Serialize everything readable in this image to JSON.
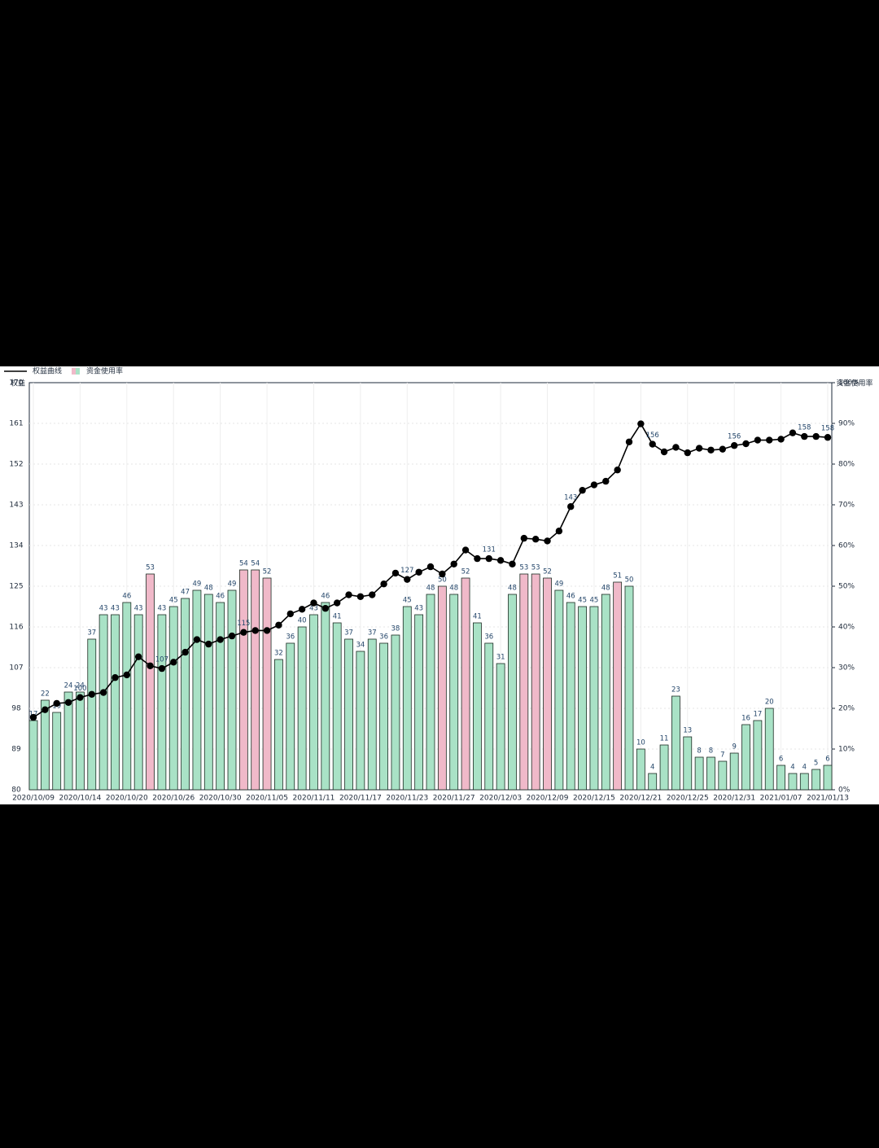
{
  "chart_data": {
    "type": "bar-line",
    "legend": "top-left",
    "grid": true,
    "ylabel": "权益",
    "y2label": "资金使用率",
    "ylim": [
      80,
      170
    ],
    "yticks": [
      80,
      89,
      98,
      107,
      116,
      125,
      134,
      143,
      152,
      161,
      170
    ],
    "y2lim": [
      0,
      100
    ],
    "y2ticks": [
      {
        "value": 0,
        "label": "0%"
      },
      {
        "value": 10,
        "label": "10%"
      },
      {
        "value": 20,
        "label": "20%"
      },
      {
        "value": 30,
        "label": "30%"
      },
      {
        "value": 40,
        "label": "40%"
      },
      {
        "value": 50,
        "label": "50%"
      },
      {
        "value": 60,
        "label": "60%"
      },
      {
        "value": 70,
        "label": "70%"
      },
      {
        "value": 80,
        "label": "80%"
      },
      {
        "value": 90,
        "label": "90%"
      },
      {
        "value": 100,
        "label": "100%"
      }
    ],
    "categories": [
      "2020/10/09",
      null,
      null,
      null,
      "2020/10/14",
      null,
      null,
      null,
      "2020/10/20",
      null,
      null,
      null,
      "2020/10/26",
      null,
      null,
      null,
      "2020/10/30",
      null,
      null,
      null,
      "2020/11/05",
      null,
      null,
      null,
      "2020/11/11",
      null,
      null,
      null,
      "2020/11/17",
      null,
      null,
      null,
      "2020/11/23",
      null,
      null,
      null,
      "2020/11/27",
      null,
      null,
      null,
      "2020/12/03",
      null,
      null,
      null,
      "2020/12/09",
      null,
      null,
      null,
      "2020/12/15",
      null,
      null,
      null,
      "2020/12/21",
      null,
      null,
      null,
      "2020/12/25",
      null,
      null,
      null,
      "2020/12/31",
      null,
      null,
      null,
      "2021/01/07",
      null,
      null,
      null,
      "2021/01/13"
    ],
    "series": [
      {
        "name": "资金使用率",
        "type": "bar",
        "axis": "y2",
        "color": "#a9e2c6",
        "colors": [
          "#a9e2c6",
          "#a9e2c6",
          "#a9e2c6",
          "#a9e2c6",
          "#a9e2c6",
          "#a9e2c6",
          "#a9e2c6",
          "#a9e2c6",
          "#a9e2c6",
          "#a9e2c6",
          "#f0b9c9",
          "#a9e2c6",
          "#a9e2c6",
          "#a9e2c6",
          "#a9e2c6",
          "#a9e2c6",
          "#a9e2c6",
          "#a9e2c6",
          "#f0b9c9",
          "#f0b9c9",
          "#f0b9c9",
          "#a9e2c6",
          "#a9e2c6",
          "#a9e2c6",
          "#a9e2c6",
          "#a9e2c6",
          "#a9e2c6",
          "#a9e2c6",
          "#a9e2c6",
          "#a9e2c6",
          "#a9e2c6",
          "#a9e2c6",
          "#a9e2c6",
          "#a9e2c6",
          "#a9e2c6",
          "#f0b9c9",
          "#a9e2c6",
          "#f0b9c9",
          "#a9e2c6",
          "#a9e2c6",
          "#a9e2c6",
          "#a9e2c6",
          "#f0b9c9",
          "#f0b9c9",
          "#f0b9c9",
          "#a9e2c6",
          "#a9e2c6",
          "#a9e2c6",
          "#a9e2c6",
          "#a9e2c6",
          "#f0b9c9",
          "#a9e2c6",
          "#a9e2c6",
          "#a9e2c6",
          "#a9e2c6",
          "#a9e2c6",
          "#a9e2c6",
          "#a9e2c6",
          "#a9e2c6",
          "#a9e2c6",
          "#a9e2c6",
          "#a9e2c6",
          "#a9e2c6",
          "#a9e2c6",
          "#a9e2c6",
          "#a9e2c6",
          "#a9e2c6",
          "#a9e2c6",
          "#a9e2c6"
        ],
        "values": [
          17,
          22,
          19,
          24,
          24,
          37,
          43,
          43,
          46,
          43,
          53,
          43,
          45,
          47,
          49,
          48,
          46,
          49,
          54,
          54,
          52,
          32,
          36,
          40,
          43,
          46,
          41,
          37,
          34,
          37,
          36,
          38,
          45,
          43,
          48,
          50,
          48,
          52,
          41,
          36,
          31,
          48,
          53,
          53,
          52,
          49,
          46,
          45,
          45,
          48,
          51,
          50,
          10,
          4,
          11,
          23,
          13,
          8,
          8,
          7,
          9,
          16,
          17,
          20,
          6,
          4,
          4,
          5,
          6
        ]
      },
      {
        "name": "权益曲线",
        "type": "line",
        "axis": "y",
        "color": "#000000",
        "values": [
          96,
          97.7,
          99.1,
          99.3,
          100.4,
          101.1,
          101.5,
          104.8,
          105.4,
          109.4,
          107.4,
          106.8,
          108.2,
          110.4,
          113.2,
          112.2,
          113.2,
          114,
          114.8,
          115.2,
          115.2,
          116.4,
          118.9,
          119.9,
          121.3,
          120.1,
          121.3,
          123.1,
          122.7,
          123.1,
          125.5,
          127.9,
          126.5,
          128.1,
          129.3,
          127.7,
          129.9,
          133,
          131.1,
          131.1,
          130.7,
          129.9,
          135.6,
          135.4,
          135,
          137.2,
          142.6,
          146.2,
          147.4,
          148.2,
          150.7,
          156.9,
          160.9,
          156.4,
          154.7,
          155.7,
          154.5,
          155.5,
          155.1,
          155.3,
          156.1,
          156.5,
          157.3,
          157.3,
          157.5,
          158.9,
          158.1,
          158.1,
          157.9
        ],
        "value_labels": [
          null,
          null,
          null,
          null,
          "100",
          null,
          null,
          null,
          null,
          null,
          null,
          "107",
          null,
          null,
          null,
          null,
          null,
          null,
          "115",
          null,
          null,
          null,
          null,
          null,
          null,
          null,
          null,
          null,
          null,
          null,
          null,
          null,
          "127",
          null,
          null,
          null,
          null,
          null,
          null,
          "131",
          null,
          null,
          null,
          null,
          null,
          null,
          "143",
          null,
          null,
          null,
          null,
          null,
          null,
          "156",
          null,
          null,
          null,
          null,
          null,
          null,
          "156",
          null,
          null,
          null,
          null,
          null,
          "158",
          null,
          "158"
        ]
      }
    ]
  }
}
